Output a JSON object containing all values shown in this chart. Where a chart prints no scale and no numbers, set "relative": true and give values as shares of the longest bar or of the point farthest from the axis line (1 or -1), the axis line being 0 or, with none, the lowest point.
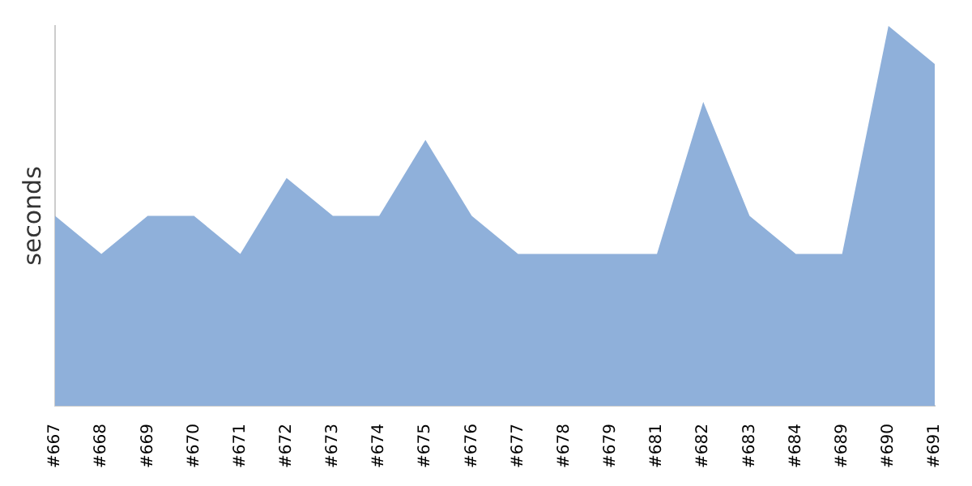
{
  "chart_data": {
    "type": "area",
    "ylabel": "seconds",
    "relative": true,
    "grid": false,
    "legend": false,
    "categories": [
      "#667",
      "#668",
      "#669",
      "#670",
      "#671",
      "#672",
      "#673",
      "#674",
      "#675",
      "#676",
      "#677",
      "#678",
      "#679",
      "#681",
      "#682",
      "#683",
      "#684",
      "#689",
      "#690",
      "#691"
    ],
    "series": [
      {
        "color": "#8fb0da",
        "values": [
          0.5,
          0.4,
          0.5,
          0.5,
          0.4,
          0.6,
          0.5,
          0.5,
          0.7,
          0.5,
          0.4,
          0.4,
          0.4,
          0.4,
          0.8,
          0.5,
          0.4,
          0.4,
          1.0,
          0.9
        ]
      }
    ]
  }
}
